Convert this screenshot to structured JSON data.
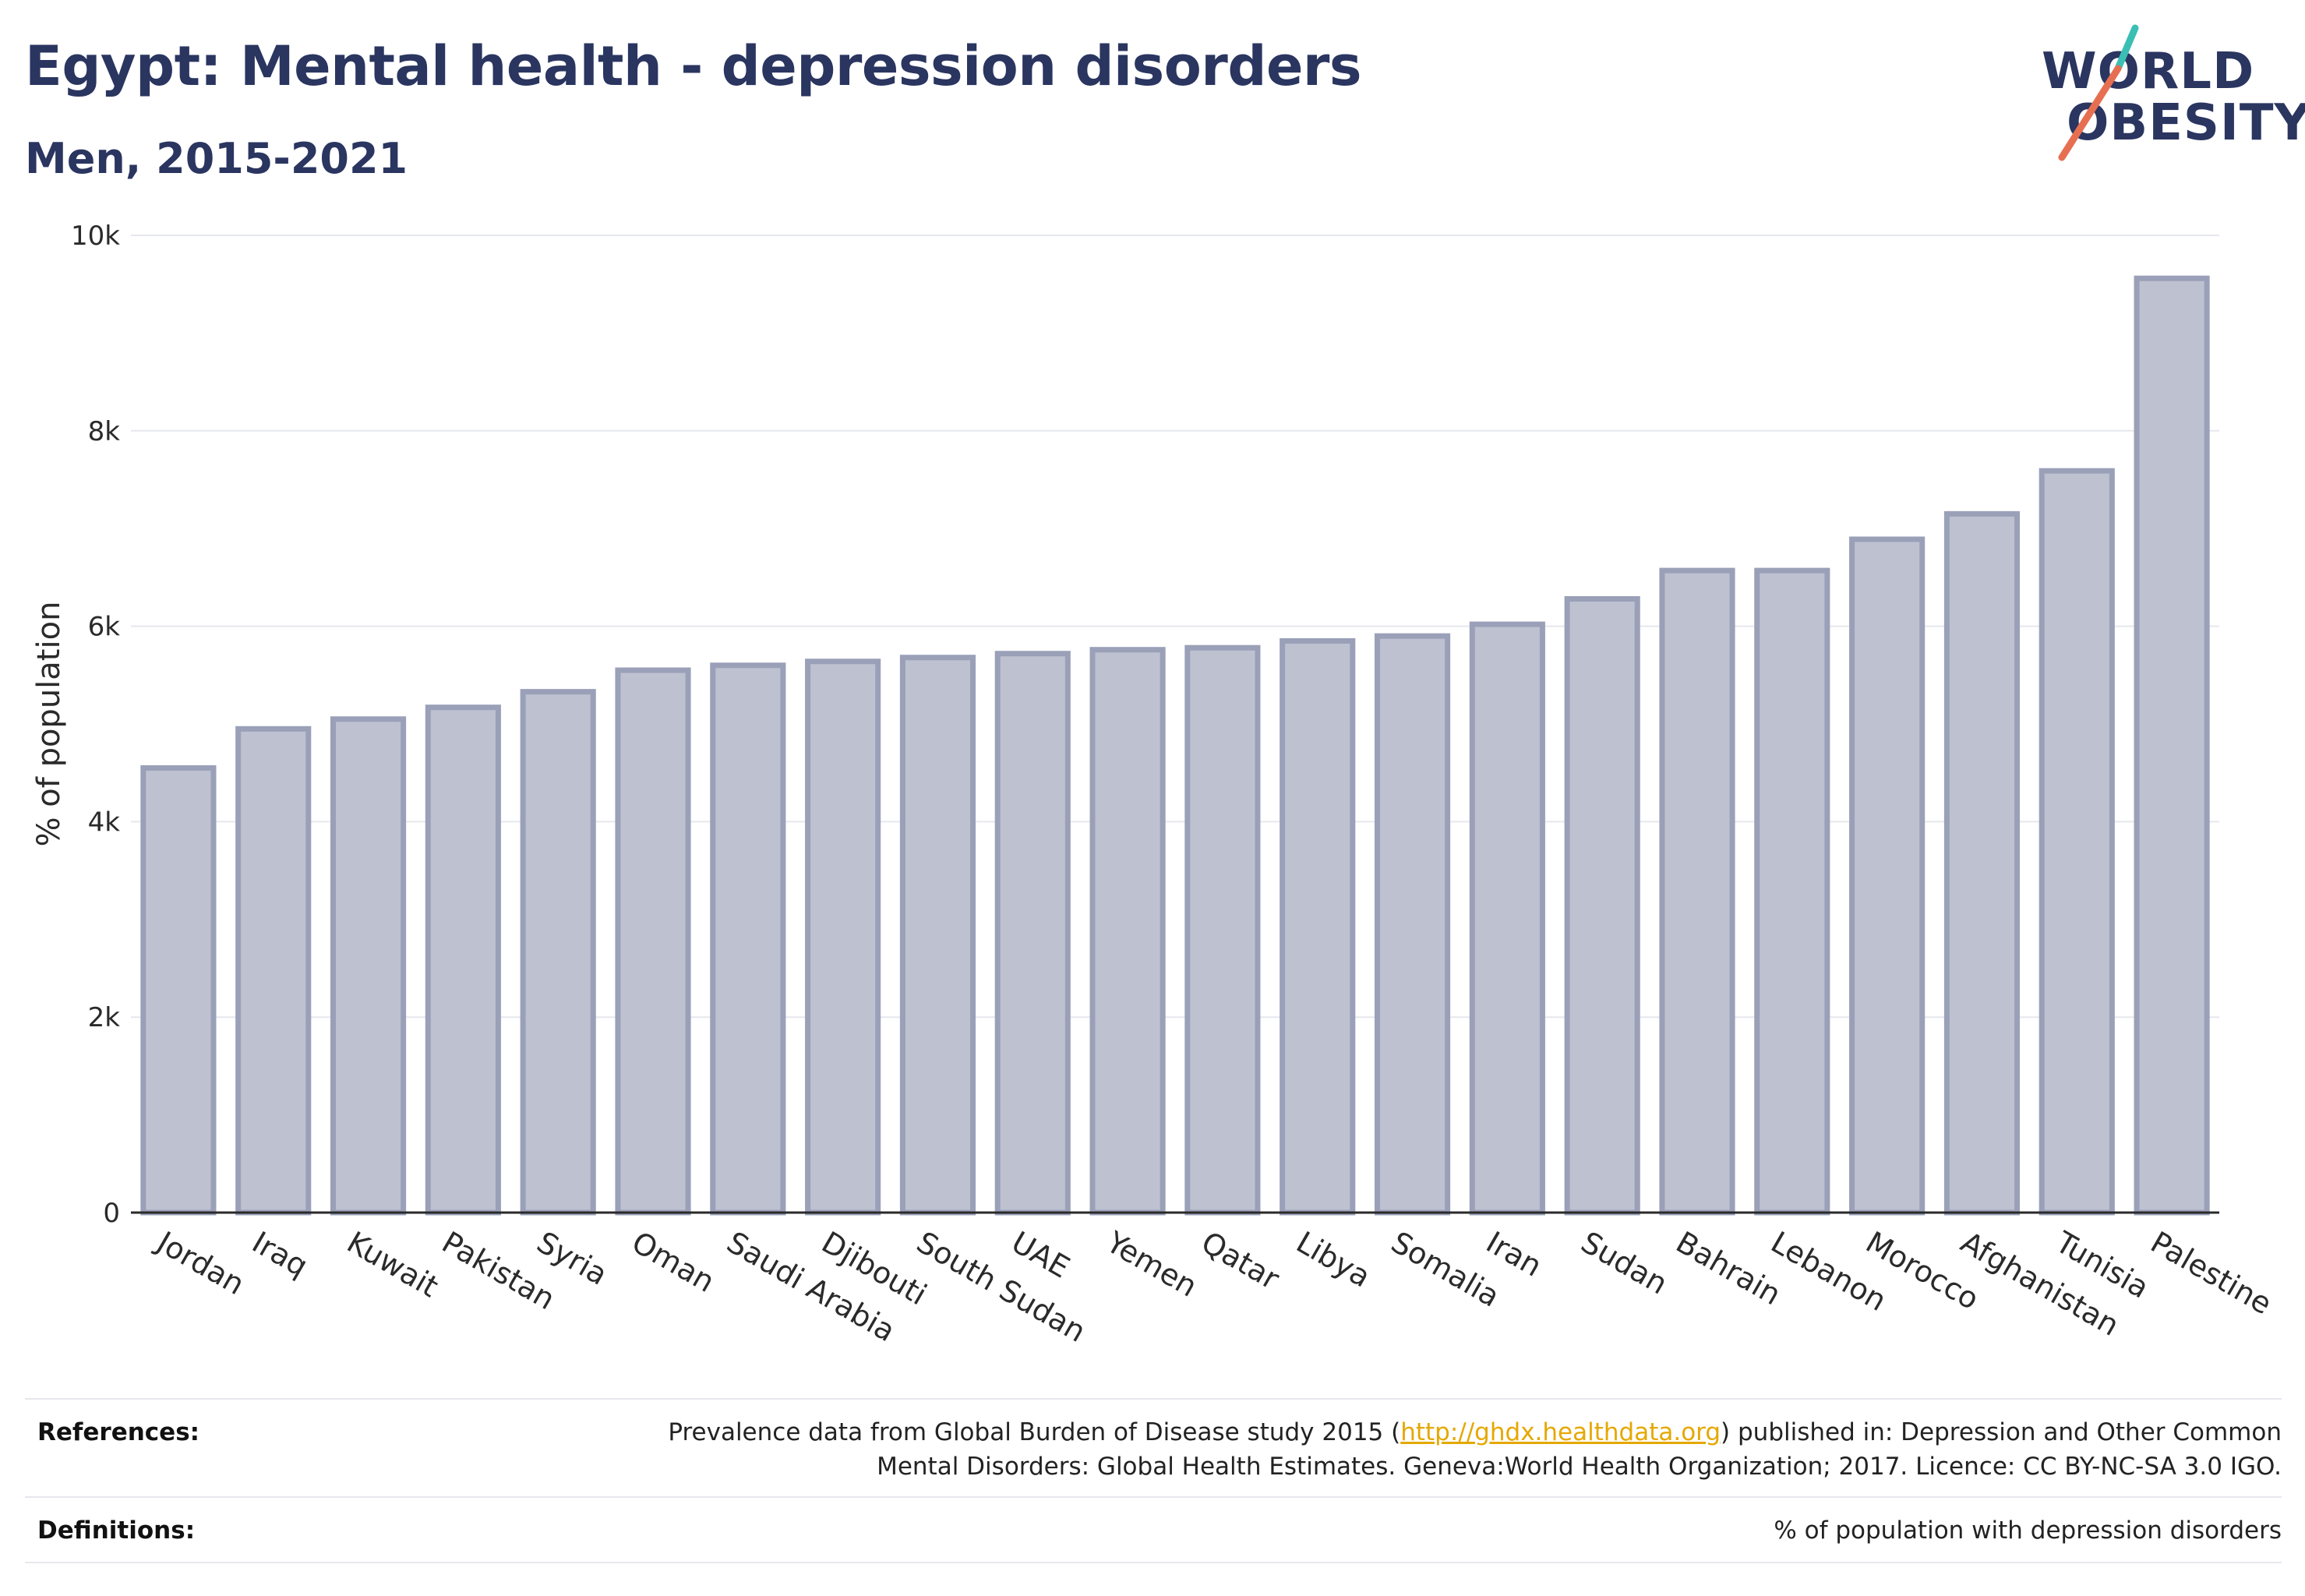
{
  "header": {
    "title": "Egypt: Mental health - depression disorders",
    "subtitle": "Men, 2015-2021"
  },
  "logo": {
    "line1": "WORLD",
    "line2": "OBESITY",
    "accent_colors": [
      "#3bbfb5",
      "#e76f51"
    ]
  },
  "chart_data": {
    "type": "bar",
    "title": "Egypt: Mental health - depression disorders",
    "subtitle": "Men, 2015-2021",
    "xlabel": "",
    "ylabel": "% of population",
    "ylim": [
      0,
      10000
    ],
    "yticks": [
      0,
      2000,
      4000,
      6000,
      8000,
      10000
    ],
    "ytick_labels": [
      "0",
      "2k",
      "4k",
      "6k",
      "8k",
      "10k"
    ],
    "grid": true,
    "categories": [
      "Jordan",
      "Iraq",
      "Kuwait",
      "Pakistan",
      "Syria",
      "Oman",
      "Saudi Arabia",
      "Djibouti",
      "South Sudan",
      "UAE",
      "Yemen",
      "Qatar",
      "Libya",
      "Somalia",
      "Iran",
      "Sudan",
      "Bahrain",
      "Lebanon",
      "Morocco",
      "Afghanistan",
      "Tunisia",
      "Palestine"
    ],
    "values": [
      4550,
      4950,
      5050,
      5170,
      5330,
      5550,
      5600,
      5640,
      5680,
      5720,
      5760,
      5780,
      5850,
      5900,
      6020,
      6280,
      6570,
      6570,
      6890,
      7150,
      7590,
      9560
    ],
    "bar_color": "#bec1d0",
    "bar_edge_color": "#9aa0b8"
  },
  "footer": {
    "references_label": "References:",
    "references_text_before": "Prevalence data from Global Burden of Disease study 2015 (",
    "references_link": "http://ghdx.healthdata.org",
    "references_text_after": ") published in: Depression and Other Common",
    "references_line2": "Mental Disorders: Global Health Estimates. Geneva:World Health Organization; 2017. Licence: CC BY-NC-SA 3.0 IGO.",
    "definitions_label": "Definitions:",
    "definitions_text": "% of population with depression disorders"
  }
}
